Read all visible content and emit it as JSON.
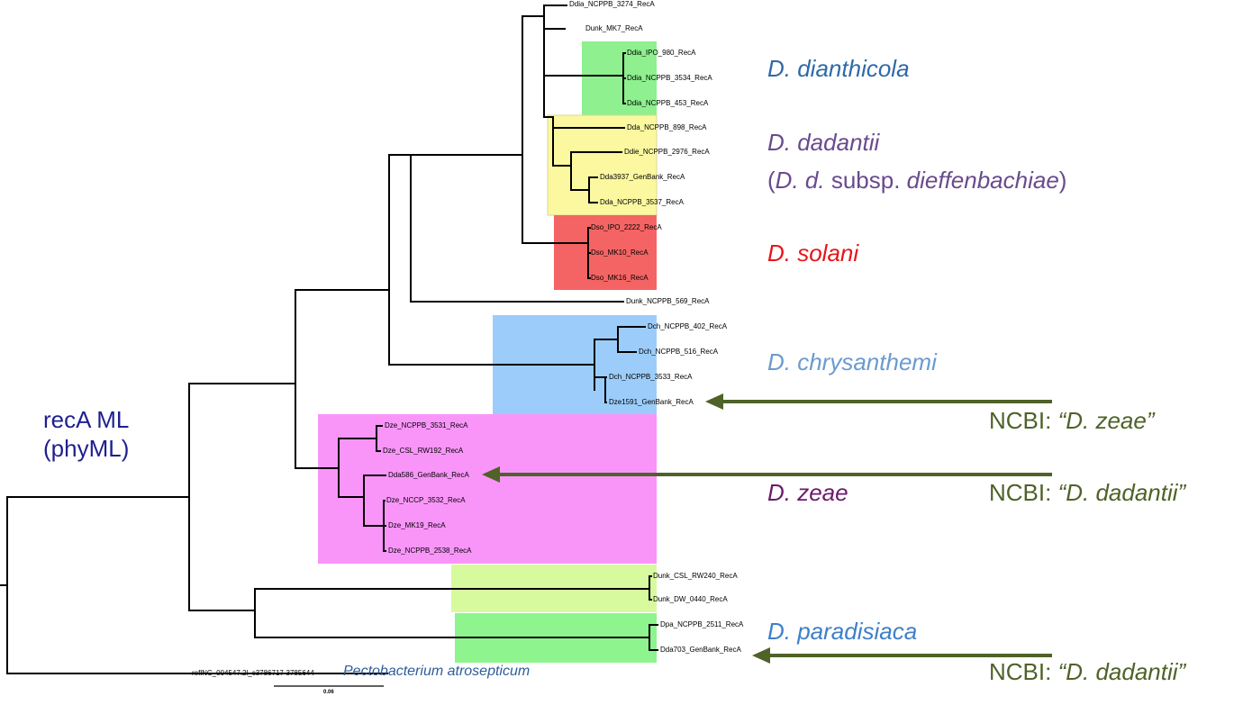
{
  "tree": {
    "leaves": [
      "Ddia_NCPPB_3274_RecA",
      "Dunk_MK7_RecA",
      "Ddia_IPO_980_RecA",
      "Ddia_NCPPB_3534_RecA",
      "Ddia_NCPPB_453_RecA",
      "Dda_NCPPB_898_RecA",
      "Ddie_NCPPB_2976_RecA",
      "Dda3937_GenBank_RecA",
      "Dda_NCPPB_3537_RecA",
      "Dso_IPO_2222_RecA",
      "Dso_MK10_RecA",
      "Dso_MK16_RecA",
      "Dunk_NCPPB_569_RecA",
      "Dch_NCPPB_402_RecA",
      "Dch_NCPPB_516_RecA",
      "Dch_NCPPB_3533_RecA",
      "Dze1591_GenBank_RecA",
      "Dze_NCPPB_3531_RecA",
      "Dze_CSL_RW192_RecA",
      "Dda586_GenBank_RecA",
      "Dze_NCCP_3532_RecA",
      "Dze_MK19_RecA",
      "Dze_NCPPB_2538_RecA",
      "Dunk_CSL_RW240_RecA",
      "Dunk_DW_0440_RecA",
      "Dpa_NCPPB_2511_RecA",
      "Dda703_GenBank_RecA",
      "reflNC_004547.2l_c3786717-3785644"
    ],
    "scale_label": "0.06",
    "outgroup_label": "Pectobacterium atrosepticum"
  },
  "method": {
    "line1": "recA ML",
    "line2": "(phyML)"
  },
  "clades": [
    {
      "id": "dianthicola",
      "name": "D. dianthicola",
      "box_color": "#8ef08e",
      "text_color": "#2e6aa6"
    },
    {
      "id": "dadantii",
      "name": "D. dadantii",
      "sub_open": "(",
      "sub_dd": "D. d.",
      "sub_mid": " subsp. ",
      "sub_name": "dieffenbachiae",
      "sub_close": ")",
      "box_color": "#fbf8a0",
      "text_color": "#6a4a8e"
    },
    {
      "id": "solani",
      "name": "D. solani",
      "box_color": "#f56464",
      "text_color": "#e8141a"
    },
    {
      "id": "chrysanthemi",
      "name": "D. chrysanthemi",
      "box_color": "#9ccdfa",
      "text_color": "#6a9ad0"
    },
    {
      "id": "zeae",
      "name": "D. zeae",
      "box_color": "#f995f9",
      "text_color": "#6b1a6b"
    },
    {
      "id": "unknown",
      "name": "",
      "box_color": "#d8fa9e",
      "text_color": "#000000"
    },
    {
      "id": "paradisiaca",
      "name": "D. paradisiaca",
      "box_color": "#8ef48e",
      "text_color": "#3f7fc8"
    }
  ],
  "annotations": [
    {
      "prefix": "NCBI: ",
      "name": "“D. zeae”"
    },
    {
      "prefix": "NCBI: ",
      "name": "“D. dadantii”"
    },
    {
      "prefix": "NCBI: ",
      "name": "“D. dadantii”"
    }
  ],
  "colors": {
    "branch": "#000000",
    "arrow": "#4f6228"
  }
}
